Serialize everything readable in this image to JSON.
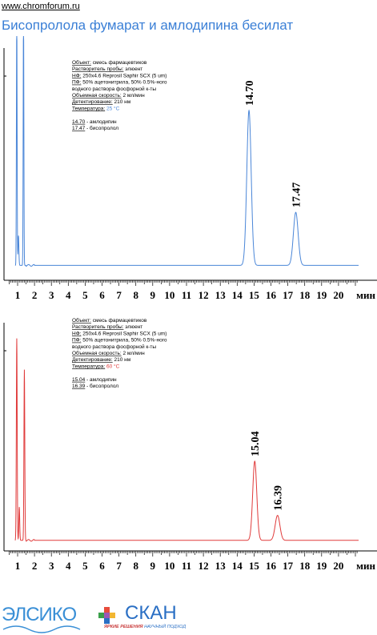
{
  "header": {
    "site": "www.chromforum.ru",
    "title": "Бисопролола фумарат и амлодипина бесилат"
  },
  "x_axis_unit": "мин",
  "panels": [
    {
      "color": "#4a86d8",
      "info": {
        "object_label": "Объект:",
        "object_value": " смесь фармацевтиков",
        "solvent_label": "Растворитель пробы:",
        "solvent_value": " элюент",
        "stationary_label": "НФ:",
        "stationary_value": " 250x4.6 Reprosil Saphir SCX (5 um)",
        "mobile_label": "ПФ:",
        "mobile_value": " 50% ацетонитрила, 50% 0.5%-ного",
        "mobile_value2": "водного раствора фосфорной к-ты",
        "flow_label": "Объемная скорость:",
        "flow_value": " 2 мл/мин",
        "detect_label": "Детектирование:",
        "detect_value": " 210 нм",
        "temp_label": "Температура:",
        "temp_value": " 25 °C",
        "peak1_time": "14.70",
        "peak1_name": " - амлодипин",
        "peak2_time": "17.47",
        "peak2_name": " - бисопролол"
      }
    },
    {
      "color": "#e03a3a",
      "info": {
        "object_label": "Объект:",
        "object_value": " смесь фармацевтиков",
        "solvent_label": "Растворитель пробы:",
        "solvent_value": " элюент",
        "stationary_label": "НФ:",
        "stationary_value": " 250x4.6 Reprosil Saphir SCX (5 um)",
        "mobile_label": "ПФ:",
        "mobile_value": " 50% ацетонитрила, 50% 0.5%-ного",
        "mobile_value2": "водного раствора фосфорной к-ты",
        "flow_label": "Объемная скорость:",
        "flow_value": " 2 мл/мин",
        "detect_label": "Детектирование:",
        "detect_value": " 210 нм",
        "temp_label": "Температура:",
        "temp_value": " 60 °C",
        "peak1_time": "15.04",
        "peak1_name": " - амлодипин",
        "peak2_time": "16.39",
        "peak2_name": " - бисопролол"
      }
    }
  ],
  "chart_data": [
    {
      "type": "line",
      "title": "",
      "xlabel": "мин",
      "ylabel": "",
      "x_ticks": [
        "1",
        "2",
        "3",
        "4",
        "5",
        "6",
        "7",
        "8",
        "9",
        "10",
        "11",
        "12",
        "13",
        "14",
        "15",
        "16",
        "17",
        "18",
        "19",
        "20"
      ],
      "xlim": [
        0.5,
        21.2
      ],
      "ylim": [
        0,
        100
      ],
      "grid": false,
      "series": [
        {
          "color": "#4a86d8",
          "peaks": [
            {
              "t": 0.95,
              "h": 120,
              "w": 0.02
            },
            {
              "t": 1.05,
              "h": 14,
              "w": 0.025
            },
            {
              "t": 1.35,
              "h": 120,
              "w": 0.02
            },
            {
              "t": 14.7,
              "h": 73,
              "w": 0.13
            },
            {
              "t": 17.47,
              "h": 25,
              "w": 0.14
            }
          ],
          "baseline": 4
        }
      ],
      "peak_labels": [
        {
          "t": 14.7,
          "text": "14.70"
        },
        {
          "t": 17.47,
          "text": "17.47"
        }
      ]
    },
    {
      "type": "line",
      "title": "",
      "xlabel": "мин",
      "ylabel": "",
      "x_ticks": [
        "1",
        "2",
        "3",
        "4",
        "5",
        "6",
        "7",
        "8",
        "9",
        "10",
        "11",
        "12",
        "13",
        "14",
        "15",
        "16",
        "17",
        "18",
        "19",
        "20"
      ],
      "xlim": [
        0.5,
        21.2
      ],
      "ylim": [
        0,
        100
      ],
      "grid": false,
      "series": [
        {
          "color": "#e03a3a",
          "peaks": [
            {
              "t": 0.95,
              "h": 97,
              "w": 0.025
            },
            {
              "t": 1.1,
              "h": 16,
              "w": 0.025
            },
            {
              "t": 1.4,
              "h": 82,
              "w": 0.025
            },
            {
              "t": 15.04,
              "h": 38,
              "w": 0.12
            },
            {
              "t": 16.39,
              "h": 12,
              "w": 0.14
            }
          ],
          "baseline": 2
        }
      ],
      "peak_labels": [
        {
          "t": 15.04,
          "text": "15.04"
        },
        {
          "t": 16.39,
          "text": "16.39"
        }
      ]
    }
  ],
  "logo": {
    "left_text": "ЭЛСИКО",
    "right_text": "СКАН",
    "tagline_a": "ЯРКИЕ РЕШЕНИЯ",
    "tagline_b": " НАУЧНЫЙ ПОДХОД"
  }
}
